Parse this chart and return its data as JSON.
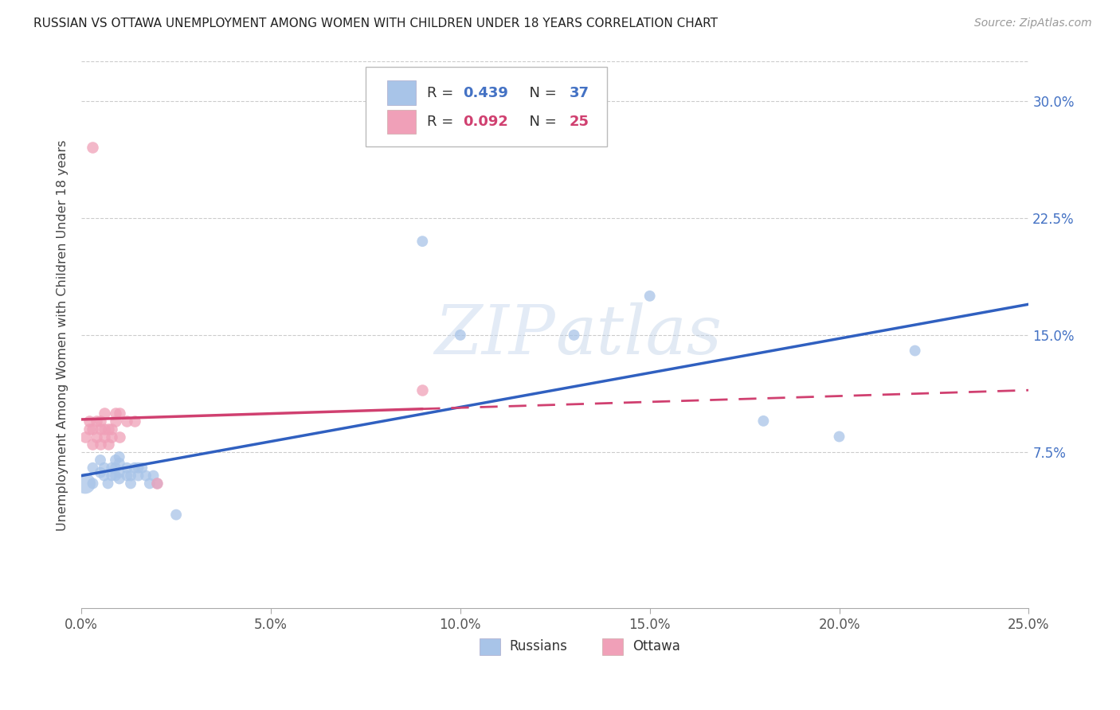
{
  "title": "RUSSIAN VS OTTAWA UNEMPLOYMENT AMONG WOMEN WITH CHILDREN UNDER 18 YEARS CORRELATION CHART",
  "source": "Source: ZipAtlas.com",
  "ylabel": "Unemployment Among Women with Children Under 18 years",
  "xlabel_ticks": [
    "0.0%",
    "5.0%",
    "10.0%",
    "15.0%",
    "20.0%",
    "25.0%"
  ],
  "ylabel_ticks": [
    "7.5%",
    "15.0%",
    "22.5%",
    "30.0%"
  ],
  "xlim": [
    0.0,
    0.25
  ],
  "ylim": [
    -0.025,
    0.325
  ],
  "legend_label1": "Russians",
  "legend_label2": "Ottawa",
  "legend_r1": "R = 0.439",
  "legend_n1": "N = 37",
  "legend_r2": "R = 0.092",
  "legend_n2": "N = 25",
  "blue_color": "#a8c4e8",
  "pink_color": "#f0a0b8",
  "blue_line_color": "#3060c0",
  "pink_line_color": "#d04070",
  "watermark": "ZIPatlas",
  "russians_x": [
    0.001,
    0.003,
    0.003,
    0.005,
    0.005,
    0.006,
    0.006,
    0.007,
    0.008,
    0.008,
    0.009,
    0.009,
    0.009,
    0.01,
    0.01,
    0.01,
    0.01,
    0.012,
    0.012,
    0.013,
    0.013,
    0.014,
    0.015,
    0.015,
    0.016,
    0.017,
    0.018,
    0.019,
    0.02,
    0.025,
    0.09,
    0.1,
    0.13,
    0.15,
    0.18,
    0.2,
    0.22
  ],
  "russians_y": [
    0.055,
    0.065,
    0.055,
    0.062,
    0.07,
    0.06,
    0.065,
    0.055,
    0.06,
    0.065,
    0.06,
    0.065,
    0.07,
    0.058,
    0.062,
    0.068,
    0.072,
    0.06,
    0.065,
    0.055,
    0.06,
    0.065,
    0.06,
    0.065,
    0.065,
    0.06,
    0.055,
    0.06,
    0.055,
    0.035,
    0.21,
    0.15,
    0.15,
    0.175,
    0.095,
    0.085,
    0.14
  ],
  "russians_size": [
    350,
    100,
    100,
    100,
    100,
    100,
    100,
    100,
    100,
    100,
    100,
    100,
    100,
    100,
    100,
    100,
    100,
    100,
    100,
    100,
    100,
    100,
    100,
    100,
    100,
    100,
    100,
    100,
    100,
    100,
    100,
    100,
    100,
    100,
    100,
    100,
    100
  ],
  "ottawa_x": [
    0.001,
    0.002,
    0.002,
    0.003,
    0.003,
    0.004,
    0.004,
    0.005,
    0.005,
    0.005,
    0.006,
    0.006,
    0.006,
    0.007,
    0.007,
    0.008,
    0.008,
    0.009,
    0.009,
    0.01,
    0.01,
    0.012,
    0.014,
    0.02,
    0.09
  ],
  "ottawa_y": [
    0.085,
    0.09,
    0.095,
    0.08,
    0.09,
    0.085,
    0.095,
    0.08,
    0.09,
    0.095,
    0.085,
    0.09,
    0.1,
    0.08,
    0.09,
    0.085,
    0.09,
    0.095,
    0.1,
    0.085,
    0.1,
    0.095,
    0.095,
    0.055,
    0.115
  ],
  "ottawa_outlier_x": [
    0.003
  ],
  "ottawa_outlier_y": [
    0.27
  ]
}
